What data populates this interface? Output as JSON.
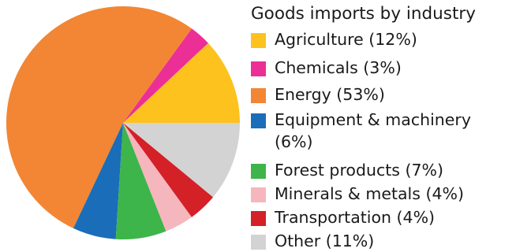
{
  "chart_data": {
    "type": "pie",
    "title": "Goods imports by industry",
    "legend_position": "right",
    "slices": [
      {
        "label": "Agriculture",
        "value": 12,
        "color": "#FDC21E",
        "legend": "Agriculture (12%)"
      },
      {
        "label": "Chemicals",
        "value": 3,
        "color": "#EC2F96",
        "legend": "Chemicals (3%)"
      },
      {
        "label": "Energy",
        "value": 53,
        "color": "#F28634",
        "legend": "Energy (53%)"
      },
      {
        "label": "Equipment & machinery",
        "value": 6,
        "color": "#1A6DB8",
        "legend_line1": "Equipment & machinery",
        "legend_line2": "(6%)"
      },
      {
        "label": "Forest products",
        "value": 7,
        "color": "#3DB54A",
        "legend": "Forest products (7%)"
      },
      {
        "label": "Minerals & metals",
        "value": 4,
        "color": "#F6B6BE",
        "legend": "Minerals & metals (4%)"
      },
      {
        "label": "Transportation",
        "value": 4,
        "color": "#D42027",
        "legend": "Transportation (4%)"
      },
      {
        "label": "Other",
        "value": 11,
        "color": "#D3D3D3",
        "legend": "Other (11%)"
      }
    ]
  }
}
